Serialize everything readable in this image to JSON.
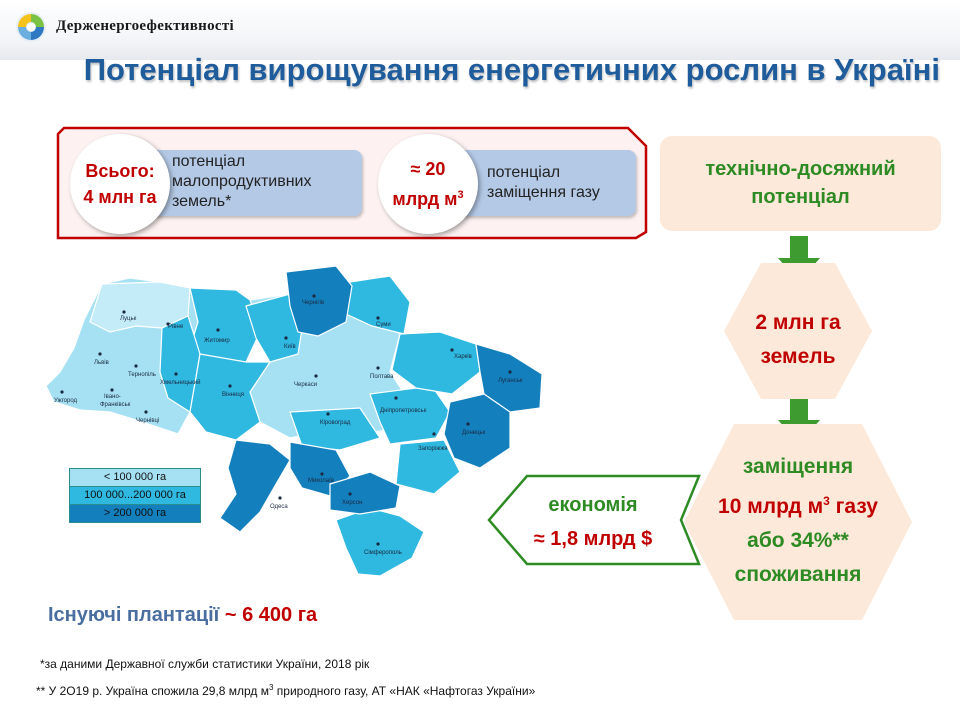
{
  "header": {
    "org_name": "Держенергоефективності",
    "title": "Потенціал вирощування енергетичних рослин в Україні"
  },
  "summary": {
    "total_label": "Всього:",
    "total_value": "4 млн га",
    "total_desc_line1": "потенціал",
    "total_desc_line2": "малопродуктивних",
    "total_desc_line3": "земель*",
    "gas_value_line1": "≈ 20",
    "gas_value_line2": "млрд м",
    "gas_value_sup": "3",
    "gas_desc_line1": "потенціал",
    "gas_desc_line2": "заміщення  газу"
  },
  "flow": {
    "tech_line1": "технічно-досяжний",
    "tech_line2": "потенціал",
    "land_line1": "2 млн га",
    "land_line2": "земель",
    "repl_line1": "заміщення",
    "repl_line2": "10 млрд м",
    "repl_line2_sup": "3",
    "repl_line2_tail": " газу",
    "repl_line3": "або 34%**",
    "repl_line4": "споживання",
    "econ_line1": "економія",
    "econ_line2": "≈ 1,8 млрд $"
  },
  "legend": [
    {
      "label": "< 100 000 га",
      "color": "#a6e1f3"
    },
    {
      "label": "100 000...200 000 га",
      "color": "#2fb8e0"
    },
    {
      "label": "> 200 000 га",
      "color": "#137fbd"
    }
  ],
  "map_regions": {
    "chernihiv": "Чернігів",
    "sumy": "Суми",
    "kharkiv": "Харків",
    "luhansk": "Луганськ",
    "donetsk": "Донецьк",
    "zaporizhzhia": "Запоріжжя",
    "dnipro": "Дніпропетровськ",
    "poltava": "Полтава",
    "cherkasy": "Черкаси",
    "kirovohrad": "Кіровоград",
    "kyiv": "Київ",
    "zhytomyr": "Житомир",
    "rivne": "Рівне",
    "lutsk": "Луцьк",
    "lviv": "Львів",
    "ternopil": "Тернопіль",
    "khmelnytskyi": "Хмельницький",
    "vinnytsia": "Вінниця",
    "uzhhorod": "Ужгород",
    "ivano_frankivsk_1": "Івано-",
    "ivano_frankivsk_2": "Франківськ",
    "chernivtsi": "Чернівці",
    "mykolaiv": "Миколаїв",
    "odesa": "Одеса",
    "kherson": "Херсон",
    "simferopol": "Сімферополь"
  },
  "plantations": {
    "label": "Існуючі плантації",
    "value": "~ 6 400 га"
  },
  "footnotes": {
    "note1": "*за даними Державної служби статистики України, 2018 рік",
    "note2_a": "** У 2О19 р. Україна  спожила 29,8 млрд  м",
    "note2_sup": "3",
    "note2_b": " природного  газу, АТ «НАК «Нафтогаз України»"
  },
  "colors": {
    "title_blue": "#1f5c9c",
    "accent_red": "#c00000",
    "accent_green": "#2e8b23",
    "peach": "#fde9d9",
    "light_blue_pill": "#b4c9e6"
  }
}
